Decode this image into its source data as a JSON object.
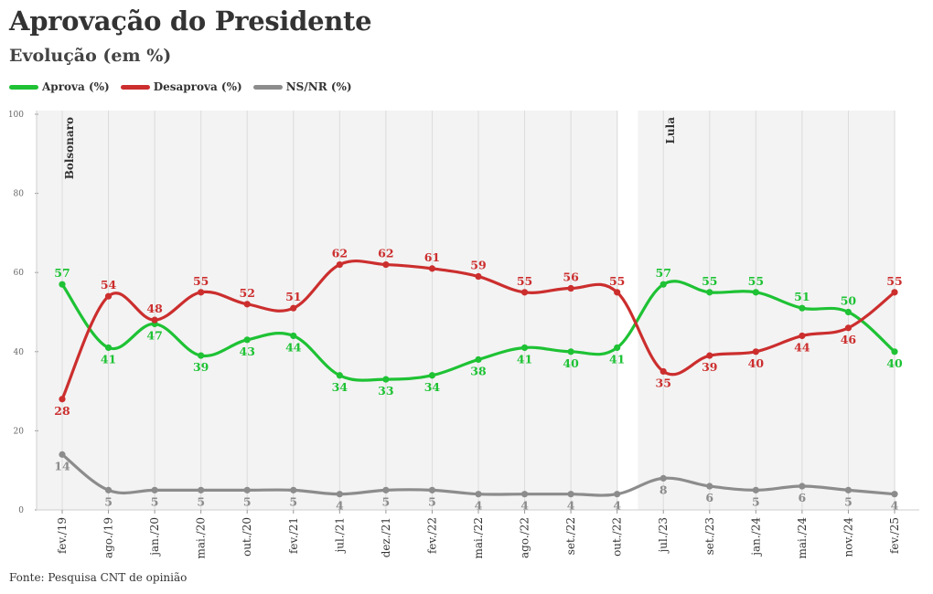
{
  "chart_data": {
    "type": "line",
    "title": "Aprovação do Presidente",
    "subtitle": "Evolução (em %)",
    "source": "Fonte: Pesquisa CNT de opinião",
    "x": [
      "fev./19",
      "ago./19",
      "jan./20",
      "mai./20",
      "out./20",
      "fev./21",
      "jul./21",
      "dez./21",
      "fev./22",
      "mai./22",
      "ago./22",
      "set./22",
      "out./22",
      "jul./23",
      "set./23",
      "jan./24",
      "mai./24",
      "nov./24",
      "fev./25"
    ],
    "ylim": [
      0,
      100
    ],
    "yticks": [
      0,
      20,
      40,
      60,
      80,
      100
    ],
    "grid": true,
    "legend_position": "top-left",
    "series": [
      {
        "name": "Aprova (%)",
        "color": "#1ec234",
        "values": [
          57,
          41,
          47,
          39,
          43,
          44,
          34,
          33,
          34,
          38,
          41,
          40,
          41,
          57,
          55,
          55,
          51,
          50,
          40
        ]
      },
      {
        "name": "Desaprova (%)",
        "color": "#cc2e2e",
        "values": [
          28,
          54,
          48,
          55,
          52,
          51,
          62,
          62,
          61,
          59,
          55,
          56,
          55,
          35,
          39,
          40,
          44,
          46,
          55
        ]
      },
      {
        "name": "NS/NR (%)",
        "color": "#8c8c8c",
        "values": [
          14,
          5,
          5,
          5,
          5,
          5,
          4,
          5,
          5,
          4,
          4,
          4,
          4,
          8,
          6,
          5,
          6,
          5,
          4
        ]
      }
    ],
    "periods": [
      {
        "label": "Bolsonaro",
        "start_index": 0,
        "end_index": 12
      },
      {
        "label": "Lula",
        "start_index": 13,
        "end_index": 18
      }
    ]
  }
}
